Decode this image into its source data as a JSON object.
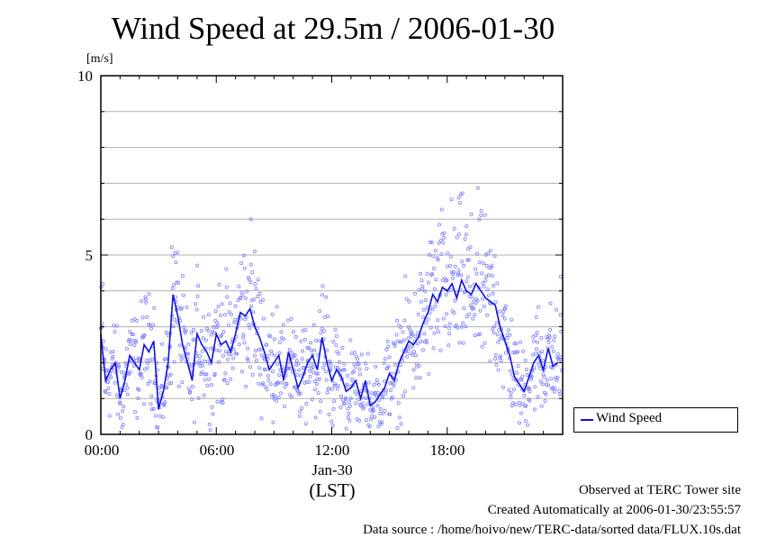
{
  "chart_data": {
    "type": "scatter",
    "title": "Wind Speed at 29.5m / 2006-01-30",
    "ylabel": "[m/s]",
    "xlabel": "(LST)",
    "x_date_label": "Jan-30",
    "ylim": [
      0,
      10
    ],
    "xlim": [
      "00:00",
      "24:00"
    ],
    "y_ticks": [
      "0",
      "5",
      "10"
    ],
    "x_ticks": [
      "00:00",
      "06:00",
      "12:00",
      "18:00"
    ],
    "grid": true,
    "legend": "bottom-right",
    "series": [
      {
        "name": "Wind Speed",
        "style": "line + scatter points",
        "color": "#1010e0",
        "point_color": "#8080ff",
        "x_hours": [
          0,
          0.25,
          0.5,
          0.75,
          1,
          1.25,
          1.5,
          1.75,
          2,
          2.25,
          2.5,
          2.75,
          3,
          3.25,
          3.5,
          3.75,
          4,
          4.25,
          4.5,
          4.75,
          5,
          5.25,
          5.5,
          5.75,
          6,
          6.25,
          6.5,
          6.75,
          7,
          7.25,
          7.5,
          7.75,
          8,
          8.25,
          8.5,
          8.75,
          9,
          9.25,
          9.5,
          9.75,
          10,
          10.25,
          10.5,
          10.75,
          11,
          11.25,
          11.5,
          11.75,
          12,
          12.25,
          12.5,
          12.75,
          13,
          13.25,
          13.5,
          13.75,
          14,
          14.25,
          14.5,
          14.75,
          15,
          15.25,
          15.5,
          15.75,
          16,
          16.25,
          16.5,
          16.75,
          17,
          17.25,
          17.5,
          17.75,
          18,
          18.25,
          18.5,
          18.75,
          19,
          19.25,
          19.5,
          19.75,
          20,
          20.25,
          20.5,
          20.75,
          21,
          21.25,
          21.5,
          21.75,
          22,
          22.25,
          22.5,
          22.75,
          23,
          23.25,
          23.5,
          23.75
        ],
        "values": [
          2.8,
          1.5,
          1.8,
          2.0,
          1.0,
          1.5,
          2.2,
          2.0,
          1.8,
          2.5,
          2.3,
          2.6,
          0.7,
          1.2,
          2.0,
          3.9,
          3.3,
          2.5,
          2.0,
          1.5,
          2.8,
          2.5,
          2.3,
          2.0,
          2.8,
          2.5,
          2.6,
          2.3,
          2.8,
          3.4,
          3.3,
          3.5,
          3.0,
          2.7,
          2.3,
          1.8,
          2.0,
          2.2,
          1.5,
          2.3,
          1.8,
          1.3,
          1.6,
          2.0,
          2.2,
          1.8,
          2.7,
          2.0,
          1.5,
          1.8,
          1.6,
          1.2,
          1.3,
          1.5,
          1.0,
          1.5,
          0.8,
          0.9,
          1.1,
          1.3,
          1.7,
          1.5,
          2.0,
          2.3,
          2.6,
          2.5,
          2.7,
          3.1,
          3.4,
          3.9,
          3.7,
          4.1,
          4.0,
          4.2,
          3.8,
          4.3,
          4.0,
          3.9,
          4.2,
          4.0,
          3.8,
          3.7,
          3.6,
          3.0,
          2.6,
          2.2,
          1.6,
          1.4,
          1.2,
          1.6,
          2.0,
          2.2,
          1.8,
          2.4,
          1.9,
          2.0
        ],
        "outliers": [
          {
            "x": 18.6,
            "y": 6.6
          },
          {
            "x": 7.8,
            "y": 6.0
          },
          {
            "x": 19.0,
            "y": 5.8
          },
          {
            "x": 8.0,
            "y": 5.1
          },
          {
            "x": 3.9,
            "y": 4.8
          },
          {
            "x": 0.1,
            "y": 4.2
          },
          {
            "x": 23.9,
            "y": 4.4
          },
          {
            "x": 2.9,
            "y": 0.2
          },
          {
            "x": 1.1,
            "y": 0.2
          }
        ]
      }
    ]
  },
  "footer": {
    "site": "Observed at TERC Tower site",
    "created": "Created Automatically at 2006-01-30/23:55:57",
    "source": "Data source : /home/hoivo/new/TERC-data/sorted  data/FLUX.10s.dat"
  }
}
